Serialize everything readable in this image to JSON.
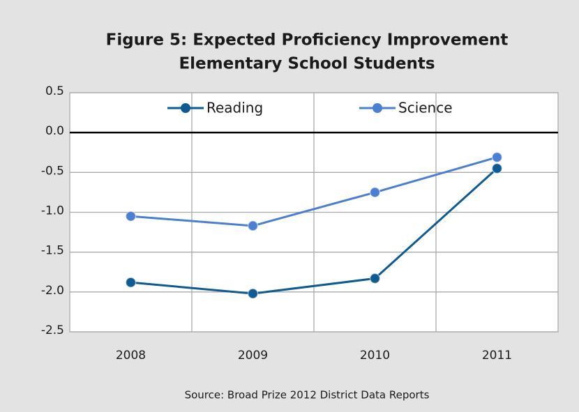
{
  "chart_data": {
    "type": "line",
    "title": [
      "Figure 5: Expected Proficiency Improvement",
      "Elementary School Students"
    ],
    "source": "Source: Broad Prize 2012 District Data Reports",
    "categories": [
      "2008",
      "2009",
      "2010",
      "2011"
    ],
    "series": [
      {
        "name": "Reading",
        "color": "#0e5a93",
        "values": [
          -1.88,
          -2.02,
          -1.83,
          -0.45
        ]
      },
      {
        "name": "Science",
        "color": "#4a7fd3",
        "values": [
          -1.05,
          -1.17,
          -0.75,
          -0.31
        ]
      }
    ],
    "ylim": [
      -2.5,
      0.5
    ],
    "yticks": [
      0.5,
      {
        "value": 0,
        "label": "0.0"
      },
      -0.5,
      {
        "value": -1,
        "label": "-1.0"
      },
      -1.5,
      {
        "value": -2,
        "label": "-2.0"
      },
      -2.5
    ],
    "grid": true,
    "legend": "top"
  }
}
